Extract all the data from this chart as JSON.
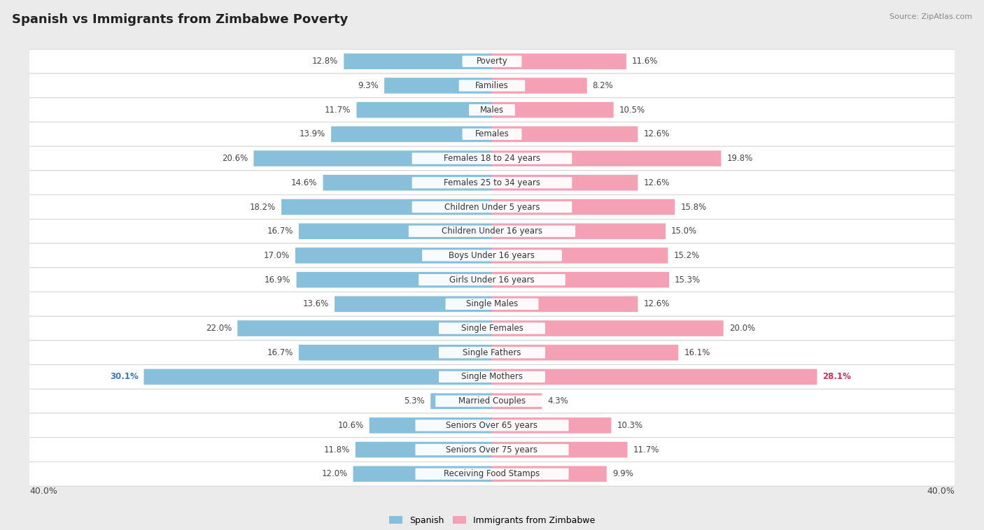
{
  "title": "Spanish vs Immigrants from Zimbabwe Poverty",
  "source": "Source: ZipAtlas.com",
  "categories": [
    "Poverty",
    "Families",
    "Males",
    "Females",
    "Females 18 to 24 years",
    "Females 25 to 34 years",
    "Children Under 5 years",
    "Children Under 16 years",
    "Boys Under 16 years",
    "Girls Under 16 years",
    "Single Males",
    "Single Females",
    "Single Fathers",
    "Single Mothers",
    "Married Couples",
    "Seniors Over 65 years",
    "Seniors Over 75 years",
    "Receiving Food Stamps"
  ],
  "spanish": [
    12.8,
    9.3,
    11.7,
    13.9,
    20.6,
    14.6,
    18.2,
    16.7,
    17.0,
    16.9,
    13.6,
    22.0,
    16.7,
    30.1,
    5.3,
    10.6,
    11.8,
    12.0
  ],
  "zimbabwe": [
    11.6,
    8.2,
    10.5,
    12.6,
    19.8,
    12.6,
    15.8,
    15.0,
    15.2,
    15.3,
    12.6,
    20.0,
    16.1,
    28.1,
    4.3,
    10.3,
    11.7,
    9.9
  ],
  "spanish_color": "#88c0dc",
  "zimbabwe_color": "#f4a0b5",
  "background_color": "#ebebeb",
  "axis_max": 40.0,
  "label_fontsize": 8.5,
  "title_fontsize": 13,
  "legend_spanish": "Spanish",
  "legend_zimbabwe": "Immigrants from Zimbabwe",
  "highlight_color_spanish": "#3a7abf",
  "highlight_color_zimbabwe": "#cc3355"
}
